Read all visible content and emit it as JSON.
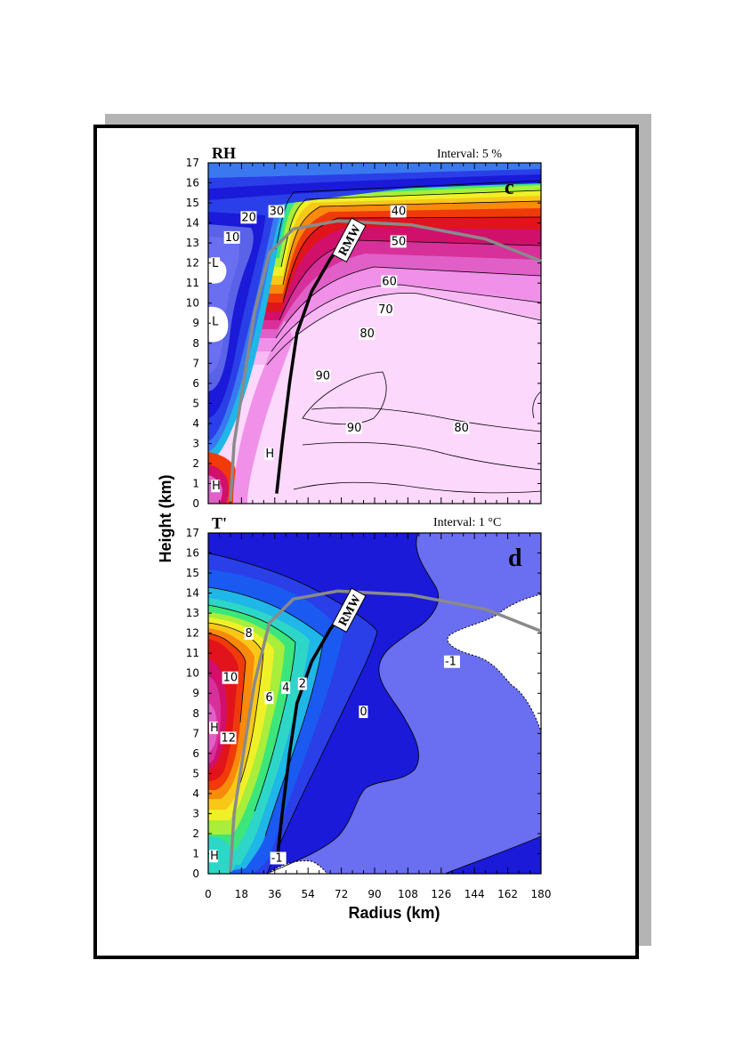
{
  "chart_data": [
    {
      "type": "contour",
      "panel_label": "RH",
      "panel_letter": "c",
      "interval_label": "Interval: 5 %",
      "xlabel": "",
      "ylabel": "Height (km)",
      "xlim": [
        0,
        180
      ],
      "ylim": [
        0,
        17
      ],
      "y_ticks": [
        "0",
        "1",
        "2",
        "3",
        "4",
        "5",
        "6",
        "7",
        "8",
        "9",
        "10",
        "11",
        "12",
        "13",
        "14",
        "15",
        "16",
        "17"
      ],
      "contour_labels": [
        {
          "text": "10",
          "x": 9,
          "y": 13.1
        },
        {
          "text": "20",
          "x": 18,
          "y": 14.1
        },
        {
          "text": "30",
          "x": 33,
          "y": 14.4
        },
        {
          "text": "40",
          "x": 99,
          "y": 14.4
        },
        {
          "text": "50",
          "x": 99,
          "y": 12.9
        },
        {
          "text": "60",
          "x": 94,
          "y": 10.9
        },
        {
          "text": "70",
          "x": 92,
          "y": 9.5
        },
        {
          "text": "80",
          "x": 82,
          "y": 8.3
        },
        {
          "text": "90",
          "x": 58,
          "y": 6.2
        },
        {
          "text": "90",
          "x": 75,
          "y": 3.6
        },
        {
          "text": "80",
          "x": 133,
          "y": 3.6
        },
        {
          "text": "L",
          "x": 2,
          "y": 11.8
        },
        {
          "text": "L",
          "x": 2,
          "y": 8.9
        },
        {
          "text": "H",
          "x": 31,
          "y": 2.3
        },
        {
          "text": "H",
          "x": 2,
          "y": 0.7
        }
      ],
      "rmw_label": "RMW",
      "rmw_curve": [
        [
          37,
          0.5
        ],
        [
          40,
          3
        ],
        [
          44,
          6
        ],
        [
          48,
          8.5
        ],
        [
          56,
          10.6
        ],
        [
          66,
          12.2
        ],
        [
          74,
          13.2
        ]
      ],
      "gray_curve": [
        [
          12,
          0.1
        ],
        [
          14,
          3
        ],
        [
          19,
          6
        ],
        [
          25,
          9.5
        ],
        [
          33,
          12.5
        ],
        [
          46,
          13.7
        ],
        [
          70,
          14.1
        ],
        [
          110,
          13.9
        ],
        [
          150,
          13.2
        ],
        [
          180,
          12.1
        ]
      ],
      "color_scale": [
        "#1a1ad8",
        "#2a3fe8",
        "#3a78f0",
        "#1fb6e8",
        "#2ed6c8",
        "#3ce67a",
        "#a8ee3a",
        "#f0f028",
        "#f8c818",
        "#f88a0c",
        "#f03a0a",
        "#e0141a",
        "#d0106a",
        "#d8309a",
        "#e060c8",
        "#f090e8",
        "#f8b8f4",
        "#fcd8fc"
      ]
    },
    {
      "type": "contour",
      "panel_label": "T'",
      "panel_letter": "d",
      "interval_label": "Interval: 1 °C",
      "xlabel": "Radius (km)",
      "ylabel": "Height (km)",
      "xlim": [
        0,
        180
      ],
      "ylim": [
        0,
        17
      ],
      "x_ticks": [
        "0",
        "18",
        "36",
        "54",
        "72",
        "90",
        "108",
        "126",
        "144",
        "162",
        "180"
      ],
      "y_ticks": [
        "0",
        "1",
        "2",
        "3",
        "4",
        "5",
        "6",
        "7",
        "8",
        "9",
        "10",
        "11",
        "12",
        "13",
        "14",
        "15",
        "16",
        "17"
      ],
      "contour_labels": [
        {
          "text": "8",
          "x": 20,
          "y": 11.8
        },
        {
          "text": "10",
          "x": 8,
          "y": 9.6
        },
        {
          "text": "6",
          "x": 31,
          "y": 8.6
        },
        {
          "text": "4",
          "x": 40,
          "y": 9.1
        },
        {
          "text": "2",
          "x": 49,
          "y": 9.3
        },
        {
          "text": "0",
          "x": 82,
          "y": 7.9
        },
        {
          "text": "-1",
          "x": 128,
          "y": 10.4
        },
        {
          "text": "-1",
          "x": 34,
          "y": 0.6
        },
        {
          "text": "12",
          "x": 7,
          "y": 6.6
        },
        {
          "text": "H",
          "x": 1,
          "y": 7.1
        },
        {
          "text": "H",
          "x": 1,
          "y": 0.7
        }
      ],
      "rmw_label": "RMW",
      "rmw_curve": [
        [
          37,
          0.5
        ],
        [
          40,
          3
        ],
        [
          44,
          6
        ],
        [
          48,
          8.5
        ],
        [
          56,
          10.6
        ],
        [
          66,
          12.2
        ],
        [
          74,
          13.2
        ]
      ],
      "gray_curve": [
        [
          12,
          0.1
        ],
        [
          14,
          3
        ],
        [
          19,
          6
        ],
        [
          25,
          9.5
        ],
        [
          33,
          12.5
        ],
        [
          46,
          13.7
        ],
        [
          70,
          14.1
        ],
        [
          110,
          13.9
        ],
        [
          150,
          13.2
        ],
        [
          180,
          12.1
        ]
      ]
    }
  ]
}
